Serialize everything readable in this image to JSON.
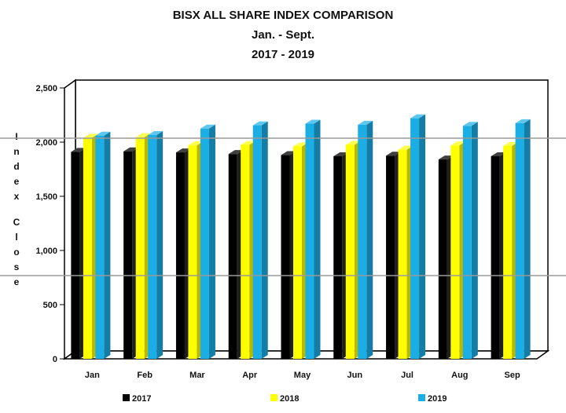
{
  "chart_data": {
    "type": "bar",
    "title": [
      "BISX ALL SHARE INDEX COMPARISON",
      "Jan. - Sept.",
      "2017 - 2019"
    ],
    "ylabel": "Index Close",
    "xlabel": "",
    "categories": [
      "Jan",
      "Feb",
      "Mar",
      "Apr",
      "May",
      "Jun",
      "Jul",
      "Aug",
      "Sep"
    ],
    "series": [
      {
        "name": "2017",
        "color": "#000000",
        "values": [
          1910,
          1915,
          1905,
          1890,
          1880,
          1870,
          1875,
          1840,
          1870
        ]
      },
      {
        "name": "2018",
        "color": "#ffff00",
        "values": [
          2040,
          2045,
          1970,
          1975,
          1960,
          1975,
          1930,
          1970,
          1965
        ]
      },
      {
        "name": "2019",
        "color": "#1aaee5",
        "values": [
          2060,
          2065,
          2125,
          2155,
          2170,
          2160,
          2220,
          2150,
          2175
        ]
      }
    ],
    "ylim": [
      0,
      2500
    ],
    "yticks": [
      "0",
      "500",
      "1,000",
      "1,500",
      "2,000",
      "2,500"
    ],
    "ytick_values": [
      0,
      500,
      1000,
      1500,
      2000,
      2500
    ],
    "grid": false,
    "legend_position": "bottom",
    "overlay_lines_color": "#9a9a9a"
  }
}
